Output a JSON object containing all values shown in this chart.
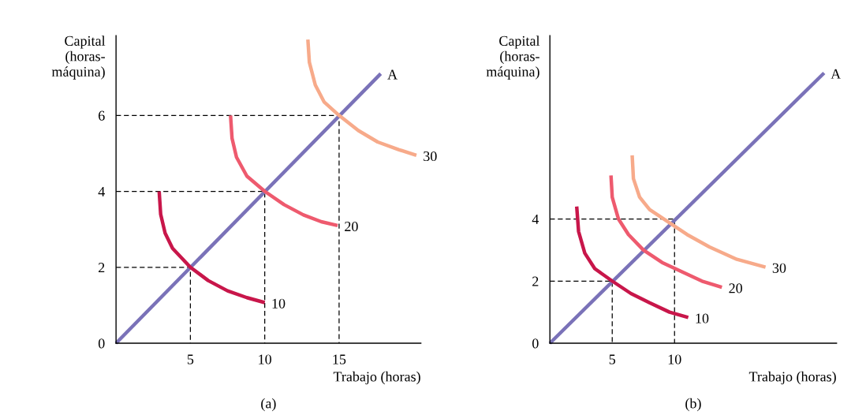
{
  "chart_data": [
    {
      "type": "line",
      "title": "(a)",
      "xlabel": "Trabajo (horas)",
      "ylabel": "Capital\n(horas-\nmáquina)",
      "xlim": [
        0,
        20.5
      ],
      "ylim": [
        0,
        8.1
      ],
      "xticks": [
        5,
        10,
        15
      ],
      "yticks": [
        0,
        2,
        4,
        6
      ],
      "grid": false,
      "legend": false,
      "series": [
        {
          "x": [
            0,
            5,
            5
          ],
          "values": [
            2,
            2,
            0
          ],
          "color": "#000000",
          "line_style": "dashed"
        },
        {
          "x": [
            0,
            10,
            10
          ],
          "values": [
            4,
            4,
            0
          ],
          "color": "#000000",
          "line_style": "dashed"
        },
        {
          "x": [
            0,
            15,
            15
          ],
          "values": [
            6,
            6,
            0
          ],
          "color": "#000000",
          "line_style": "dashed"
        },
        {
          "name": "A",
          "x": [
            0,
            17.8
          ],
          "values": [
            0,
            7.1
          ],
          "color": "#7a72b8",
          "line_style": "solid"
        },
        {
          "name": "10",
          "x": [
            2.9,
            3.0,
            3.3,
            3.8,
            5,
            6.2,
            7.5,
            8.8,
            10
          ],
          "values": [
            4.0,
            3.4,
            2.9,
            2.5,
            2.0,
            1.65,
            1.38,
            1.2,
            1.07
          ],
          "color": "#c8164a",
          "line_style": "solid"
        },
        {
          "name": "20",
          "x": [
            7.7,
            7.8,
            8.1,
            8.8,
            10,
            11.3,
            12.6,
            13.8,
            14.9
          ],
          "values": [
            6.0,
            5.4,
            4.9,
            4.4,
            4.0,
            3.65,
            3.38,
            3.2,
            3.1
          ],
          "color": "#ee5a6e",
          "line_style": "solid"
        },
        {
          "name": "30",
          "x": [
            12.9,
            13.0,
            13.4,
            14.0,
            15,
            16.3,
            17.6,
            19,
            20.2
          ],
          "values": [
            8.0,
            7.4,
            6.8,
            6.35,
            6.0,
            5.6,
            5.3,
            5.1,
            4.95
          ],
          "color": "#f7aa8a",
          "line_style": "solid"
        }
      ]
    },
    {
      "type": "line",
      "title": "(b)",
      "xlabel": "Trabajo (horas)",
      "ylabel": "Capital\n(horas-\nmáquina)",
      "xlim": [
        0,
        23
      ],
      "ylim": [
        0,
        9.9
      ],
      "xticks": [
        5,
        10
      ],
      "yticks": [
        0,
        2,
        4
      ],
      "grid": false,
      "legend": false,
      "series": [
        {
          "x": [
            0,
            5,
            5
          ],
          "values": [
            2,
            2,
            0
          ],
          "color": "#000000",
          "line_style": "dashed"
        },
        {
          "x": [
            0,
            10,
            10
          ],
          "values": [
            4,
            4,
            0
          ],
          "color": "#000000",
          "line_style": "dashed"
        },
        {
          "name": "A",
          "x": [
            0,
            22
          ],
          "values": [
            0,
            8.7
          ],
          "color": "#7a72b8",
          "line_style": "solid"
        },
        {
          "name": "10",
          "x": [
            2.15,
            2.3,
            2.8,
            3.6,
            5,
            6.5,
            8,
            9.6,
            11.1
          ],
          "values": [
            4.4,
            3.6,
            2.9,
            2.4,
            2.0,
            1.6,
            1.3,
            1.0,
            0.83
          ],
          "color": "#c8164a",
          "line_style": "solid"
        },
        {
          "name": "20",
          "x": [
            4.9,
            5.0,
            5.5,
            6.3,
            7.5,
            9,
            10.6,
            12.2,
            13.8
          ],
          "values": [
            5.4,
            4.7,
            4.0,
            3.5,
            3.0,
            2.6,
            2.3,
            2.0,
            1.8
          ],
          "color": "#ee5a6e",
          "line_style": "solid"
        },
        {
          "name": "30",
          "x": [
            6.6,
            6.7,
            7.2,
            8.0,
            9.5,
            11,
            12.8,
            15,
            17.3
          ],
          "values": [
            6.05,
            5.3,
            4.7,
            4.3,
            3.9,
            3.5,
            3.1,
            2.7,
            2.45
          ],
          "color": "#f7aa8a",
          "line_style": "solid"
        }
      ]
    }
  ]
}
